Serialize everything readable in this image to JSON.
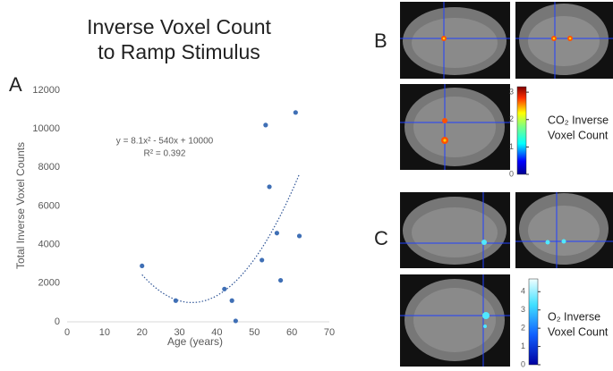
{
  "chart_data": {
    "type": "scatter",
    "title_lines": [
      "Inverse Voxel Count",
      "to Ramp Stimulus"
    ],
    "panel_label": "A",
    "x_label": "Age (years)",
    "y_label": "Total Inverse Voxel Counts",
    "x": [
      20,
      29,
      42,
      44,
      45,
      52,
      53,
      54,
      56,
      57,
      61,
      62
    ],
    "values": [
      2900,
      1100,
      1700,
      1100,
      50,
      3200,
      10200,
      7000,
      4600,
      2150,
      10850,
      4450
    ],
    "color": "#3f6fb5",
    "xlim": [
      0,
      70
    ],
    "xticks": [
      0,
      10,
      20,
      30,
      40,
      50,
      60,
      70
    ],
    "ylim": [
      0,
      12000
    ],
    "yticks": [
      0,
      2000,
      4000,
      6000,
      8000,
      10000,
      12000
    ],
    "grid": false,
    "trendline": {
      "equation": "y = 8.1x² - 540x + 10000",
      "r2": "R² = 0.392",
      "coefficients": [
        8.1,
        -540,
        10000
      ],
      "xrange": [
        20,
        62
      ],
      "color": "#2f5597"
    }
  },
  "panels": [
    {
      "label": "B",
      "colorbar": {
        "label_lines": [
          "CO₂ Inverse",
          "Voxel Count"
        ],
        "lim": [
          0,
          3.2
        ],
        "ticks": [
          0,
          1,
          2,
          3
        ]
      }
    },
    {
      "label": "C",
      "colorbar": {
        "label_lines": [
          "O₂ Inverse",
          "Voxel Count"
        ],
        "lim": [
          0,
          4.7
        ],
        "ticks": [
          0,
          1,
          2,
          3,
          4
        ]
      }
    }
  ]
}
